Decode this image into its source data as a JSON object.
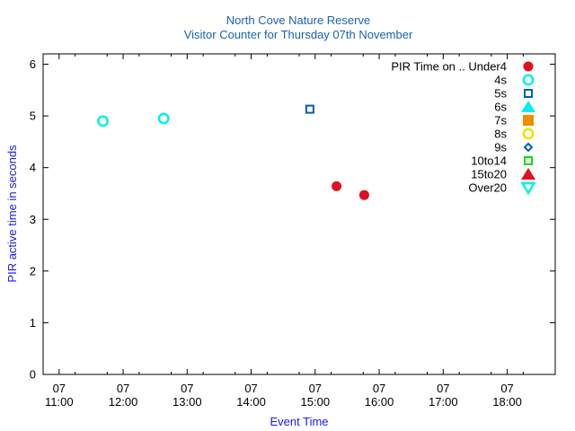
{
  "chart_data": {
    "type": "scatter",
    "title": "North Cove Nature Reserve",
    "subtitle": "Visitor Counter for Thursday 07th November",
    "xlabel": "Event Time",
    "ylabel": "PIR active time in seconds",
    "xlim": [
      "10:45",
      "18:45"
    ],
    "ylim": [
      0,
      6.2
    ],
    "x_ticks": [
      {
        "date": "07",
        "time": "11:00"
      },
      {
        "date": "07",
        "time": "12:00"
      },
      {
        "date": "07",
        "time": "13:00"
      },
      {
        "date": "07",
        "time": "14:00"
      },
      {
        "date": "07",
        "time": "15:00"
      },
      {
        "date": "07",
        "time": "16:00"
      },
      {
        "date": "07",
        "time": "17:00"
      },
      {
        "date": "07",
        "time": "18:00"
      }
    ],
    "y_ticks": [
      "0",
      "1",
      "2",
      "3",
      "4",
      "5",
      "6"
    ],
    "legend_position": "top-right",
    "grid": false,
    "series": [
      {
        "name": "PIR Time on .. Under4",
        "marker": "circle-filled",
        "color": "#e01020",
        "points": [
          {
            "x": "15:20",
            "y": 3.64
          },
          {
            "x": "15:46",
            "y": 3.47
          }
        ]
      },
      {
        "name": "4s",
        "marker": "circle-open",
        "color": "#00f0f0",
        "points": [
          {
            "x": "11:41",
            "y": 4.9
          },
          {
            "x": "12:38",
            "y": 4.95
          }
        ]
      },
      {
        "name": "5s",
        "marker": "square-open",
        "color": "#0060b0",
        "points": [
          {
            "x": "14:55",
            "y": 5.13
          }
        ]
      },
      {
        "name": "6s",
        "marker": "triangle-up-filled",
        "color": "#00f0f0",
        "points": []
      },
      {
        "name": "7s",
        "marker": "square-filled",
        "color": "#e89000",
        "points": []
      },
      {
        "name": "8s",
        "marker": "circle-open",
        "color": "#f0e000",
        "points": []
      },
      {
        "name": "9s",
        "marker": "diamond-open",
        "color": "#0060b0",
        "points": []
      },
      {
        "name": "10to14",
        "marker": "square-open",
        "color": "#00e000",
        "points": []
      },
      {
        "name": "15to20",
        "marker": "triangle-up-filled",
        "color": "#e01020",
        "points": []
      },
      {
        "name": "Over20",
        "marker": "triangle-down-open",
        "color": "#00f0f0",
        "points": []
      }
    ]
  }
}
